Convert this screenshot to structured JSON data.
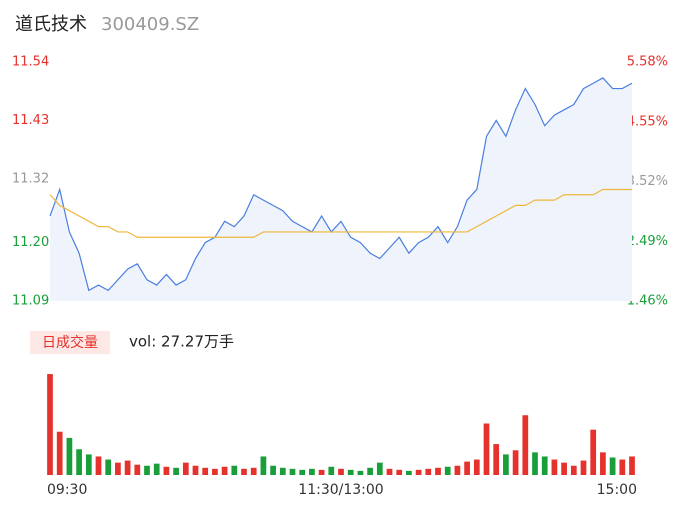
{
  "chart_data": {
    "type": "line",
    "title": "道氏技术",
    "subtitle": "300409.SZ",
    "categories": [
      "09:30",
      null,
      null,
      null,
      null,
      null,
      null,
      null,
      null,
      null,
      null,
      null,
      null,
      null,
      null,
      null,
      null,
      null,
      null,
      null,
      null,
      null,
      null,
      null,
      null,
      null,
      null,
      null,
      null,
      null,
      "11:30/13:00",
      null,
      null,
      null,
      null,
      null,
      null,
      null,
      null,
      null,
      null,
      null,
      null,
      null,
      null,
      null,
      null,
      null,
      null,
      null,
      null,
      null,
      null,
      null,
      null,
      null,
      null,
      null,
      null,
      null,
      "15:00"
    ],
    "series": [
      {
        "name": "price",
        "color": "#4a7fe0",
        "values": [
          11.25,
          11.3,
          11.22,
          11.18,
          11.11,
          11.12,
          11.11,
          11.13,
          11.15,
          11.16,
          11.13,
          11.12,
          11.14,
          11.12,
          11.13,
          11.17,
          11.2,
          11.21,
          11.24,
          11.23,
          11.25,
          11.29,
          11.28,
          11.27,
          11.26,
          11.24,
          11.23,
          11.22,
          11.25,
          11.22,
          11.24,
          11.21,
          11.2,
          11.18,
          11.17,
          11.19,
          11.21,
          11.18,
          11.2,
          11.21,
          11.23,
          11.2,
          11.23,
          11.28,
          11.3,
          11.4,
          11.43,
          11.4,
          11.45,
          11.49,
          11.46,
          11.42,
          11.44,
          11.45,
          11.46,
          11.49,
          11.5,
          11.51,
          11.49,
          11.49,
          11.5
        ]
      },
      {
        "name": "average",
        "color": "#f0b83a",
        "values": [
          11.29,
          11.27,
          11.26,
          11.25,
          11.24,
          11.23,
          11.23,
          11.22,
          11.22,
          11.21,
          11.21,
          11.21,
          11.21,
          11.21,
          11.21,
          11.21,
          11.21,
          11.21,
          11.21,
          11.21,
          11.21,
          11.21,
          11.22,
          11.22,
          11.22,
          11.22,
          11.22,
          11.22,
          11.22,
          11.22,
          11.22,
          11.22,
          11.22,
          11.22,
          11.22,
          11.22,
          11.22,
          11.22,
          11.22,
          11.22,
          11.22,
          11.22,
          11.22,
          11.22,
          11.23,
          11.24,
          11.25,
          11.26,
          11.27,
          11.27,
          11.28,
          11.28,
          11.28,
          11.29,
          11.29,
          11.29,
          11.29,
          11.3,
          11.3,
          11.3,
          11.3
        ]
      }
    ],
    "ylim": [
      11.09,
      11.54
    ],
    "yticks": [
      11.54,
      11.43,
      11.32,
      {
        "value": 11.2,
        "label": "11.20"
      },
      11.09
    ],
    "ytick_colors": [
      "#e5322d",
      "#e5322d",
      "#999999",
      "#1a9e3a",
      "#1a9e3a"
    ],
    "y2lim": [
      1.46,
      5.58
    ],
    "y2ticks": [
      {
        "value": 5.58,
        "label": "5.58%"
      },
      {
        "value": 4.55,
        "label": "4.55%"
      },
      {
        "value": 3.52,
        "label": "3.52%"
      },
      {
        "value": 2.49,
        "label": "2.49%"
      },
      {
        "value": 1.46,
        "label": "1.46%"
      }
    ],
    "y2tick_colors": [
      "#e5322d",
      "#e5322d",
      "#999999",
      "#1a9e3a",
      "#1a9e3a"
    ],
    "area_color": "#eef3fc",
    "volume": {
      "legend": "日成交量",
      "label": "vol: 27.27万手",
      "up_color": "#e5322d",
      "down_color": "#1a9e3a",
      "ylim": [
        0,
        10000
      ],
      "values": [
        9800,
        4200,
        3600,
        2500,
        2000,
        1800,
        1500,
        1200,
        1400,
        1000,
        900,
        1100,
        800,
        700,
        1200,
        900,
        700,
        600,
        800,
        900,
        600,
        700,
        1800,
        900,
        700,
        600,
        500,
        600,
        500,
        800,
        600,
        500,
        400,
        700,
        1200,
        600,
        500,
        400,
        500,
        600,
        700,
        800,
        900,
        1300,
        1500,
        5000,
        3000,
        2000,
        2400,
        5800,
        2200,
        1800,
        1500,
        1200,
        900,
        1400,
        4400,
        2200,
        1700,
        1500,
        1800
      ]
    }
  }
}
